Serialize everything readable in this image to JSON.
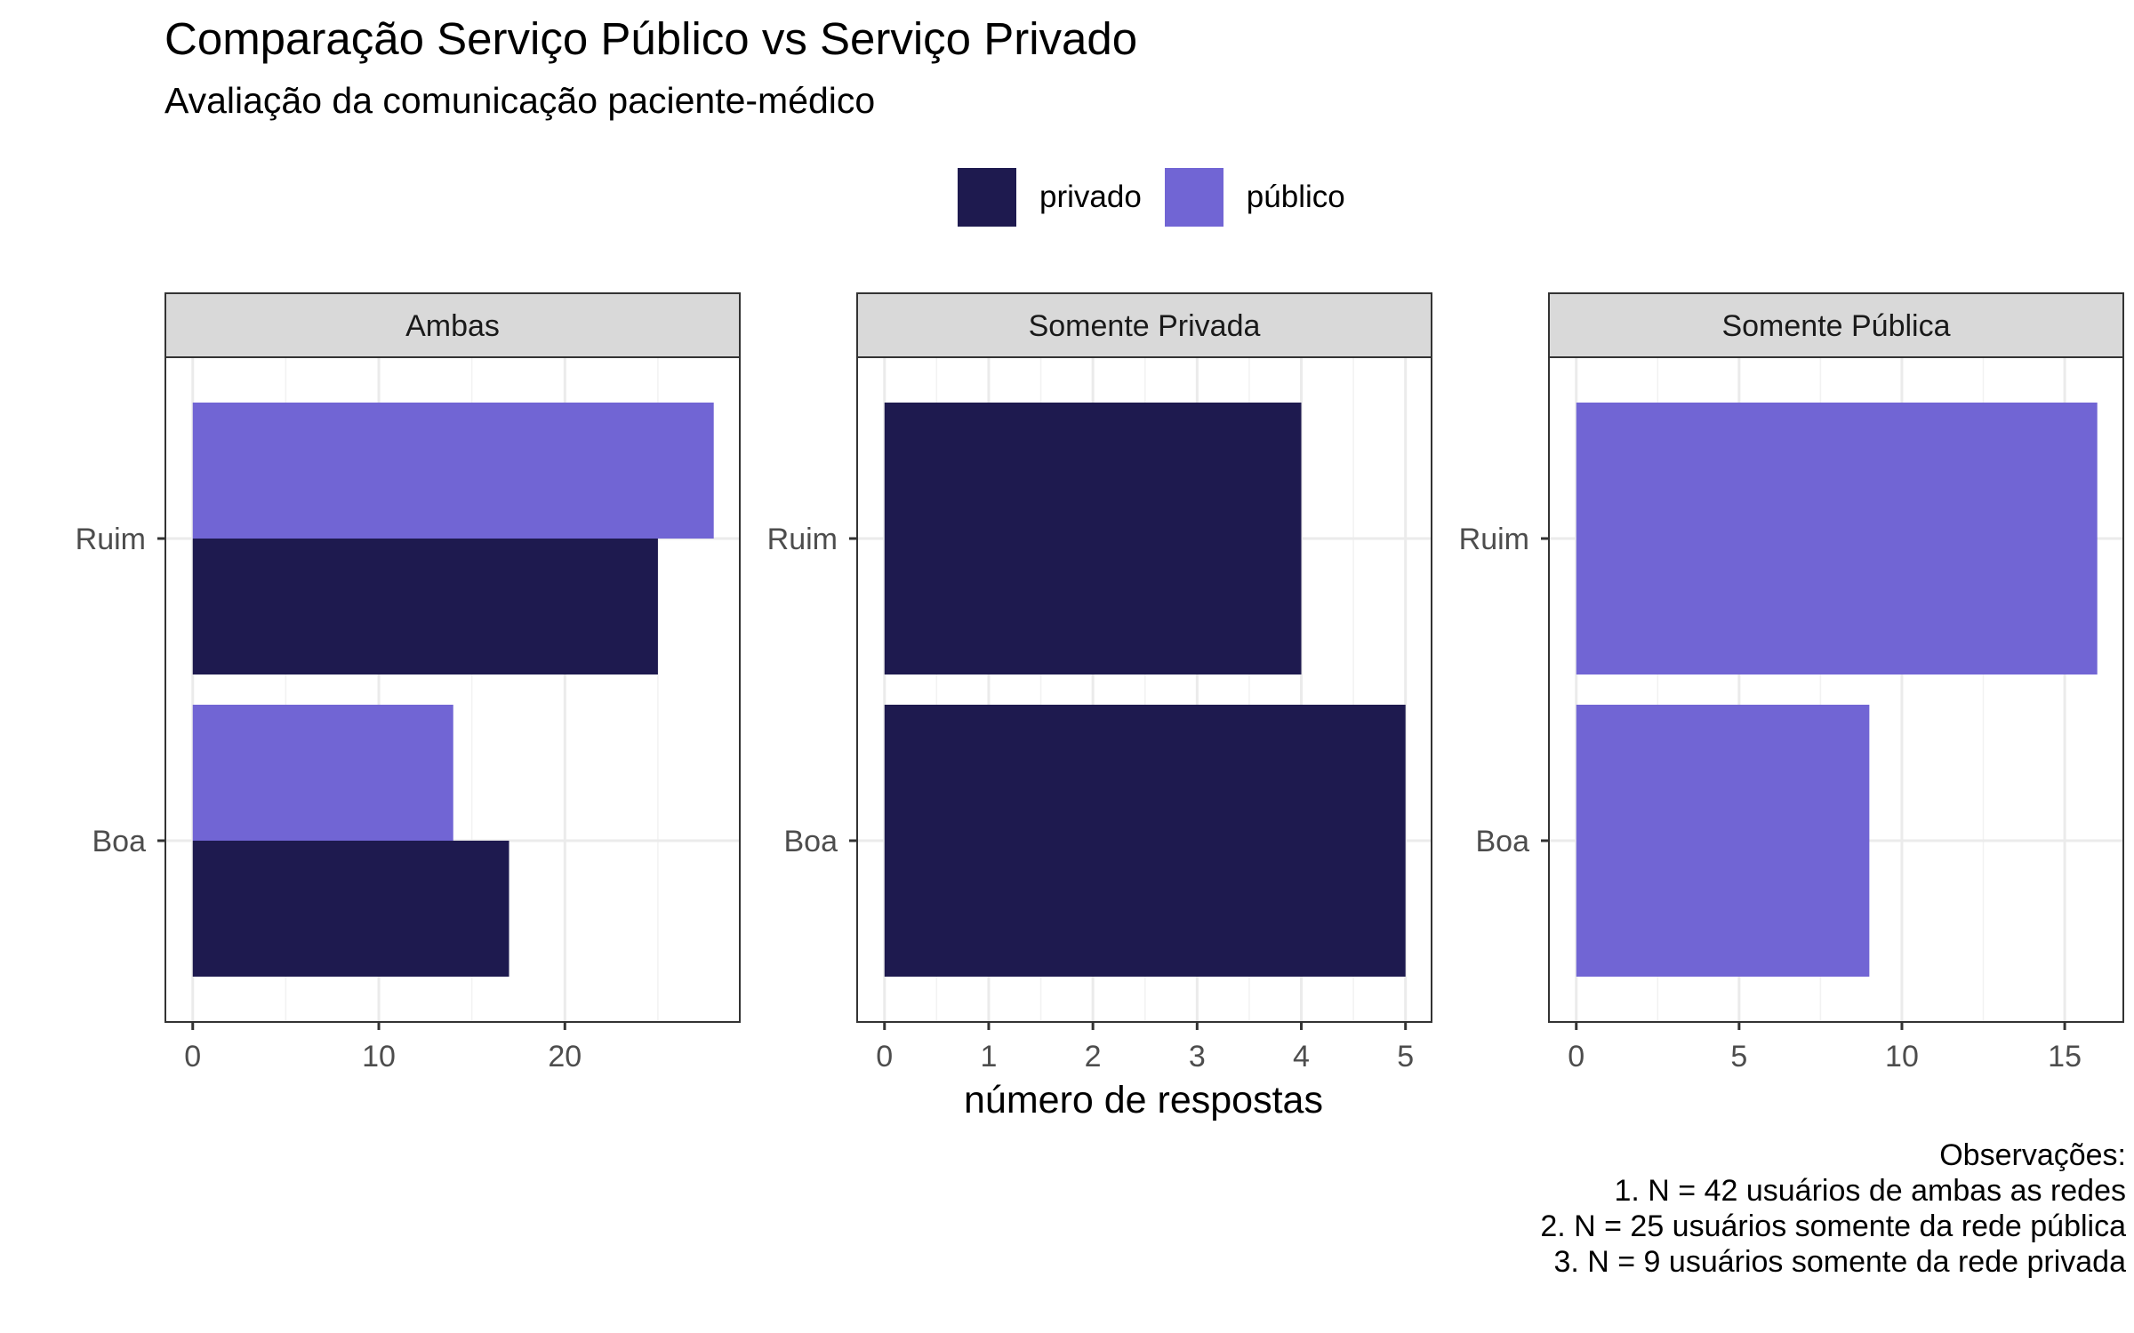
{
  "title": "Comparação Serviço Público vs Serviço Privado",
  "subtitle": "Avaliação da comunicação paciente-médico",
  "legend": [
    {
      "label": "privado",
      "color": "#1e1a4f"
    },
    {
      "label": "público",
      "color": "#7165d4"
    }
  ],
  "caption": [
    "Observações:",
    "1. N = 42 usuários de ambas as redes",
    "2. N = 25 usuários somente da rede pública",
    "3. N = 9 usuários somente da rede privada"
  ],
  "chart_data": {
    "type": "bar",
    "orientation": "horizontal",
    "xlabel": "número de respostas",
    "ylabel": "",
    "categories": [
      "Ruim",
      "Boa"
    ],
    "colors": {
      "privado": "#1e1a4f",
      "público": "#7165d4"
    },
    "grid": true,
    "legend_position": "top",
    "panels": [
      {
        "title": "Ambas",
        "xlim": [
          0,
          29.4
        ],
        "xticks": [
          0,
          10,
          20
        ],
        "series": [
          {
            "name": "público",
            "values": [
              28,
              14
            ]
          },
          {
            "name": "privado",
            "values": [
              25,
              17
            ]
          }
        ]
      },
      {
        "title": "Somente Privada",
        "xlim": [
          0,
          5.25
        ],
        "xticks": [
          0,
          1,
          2,
          3,
          4,
          5
        ],
        "series": [
          {
            "name": "privado",
            "values": [
              4,
              5
            ]
          }
        ]
      },
      {
        "title": "Somente Pública",
        "xlim": [
          0,
          16.8
        ],
        "xticks": [
          0,
          5,
          10,
          15
        ],
        "series": [
          {
            "name": "público",
            "values": [
              16,
              9
            ]
          }
        ]
      }
    ]
  }
}
